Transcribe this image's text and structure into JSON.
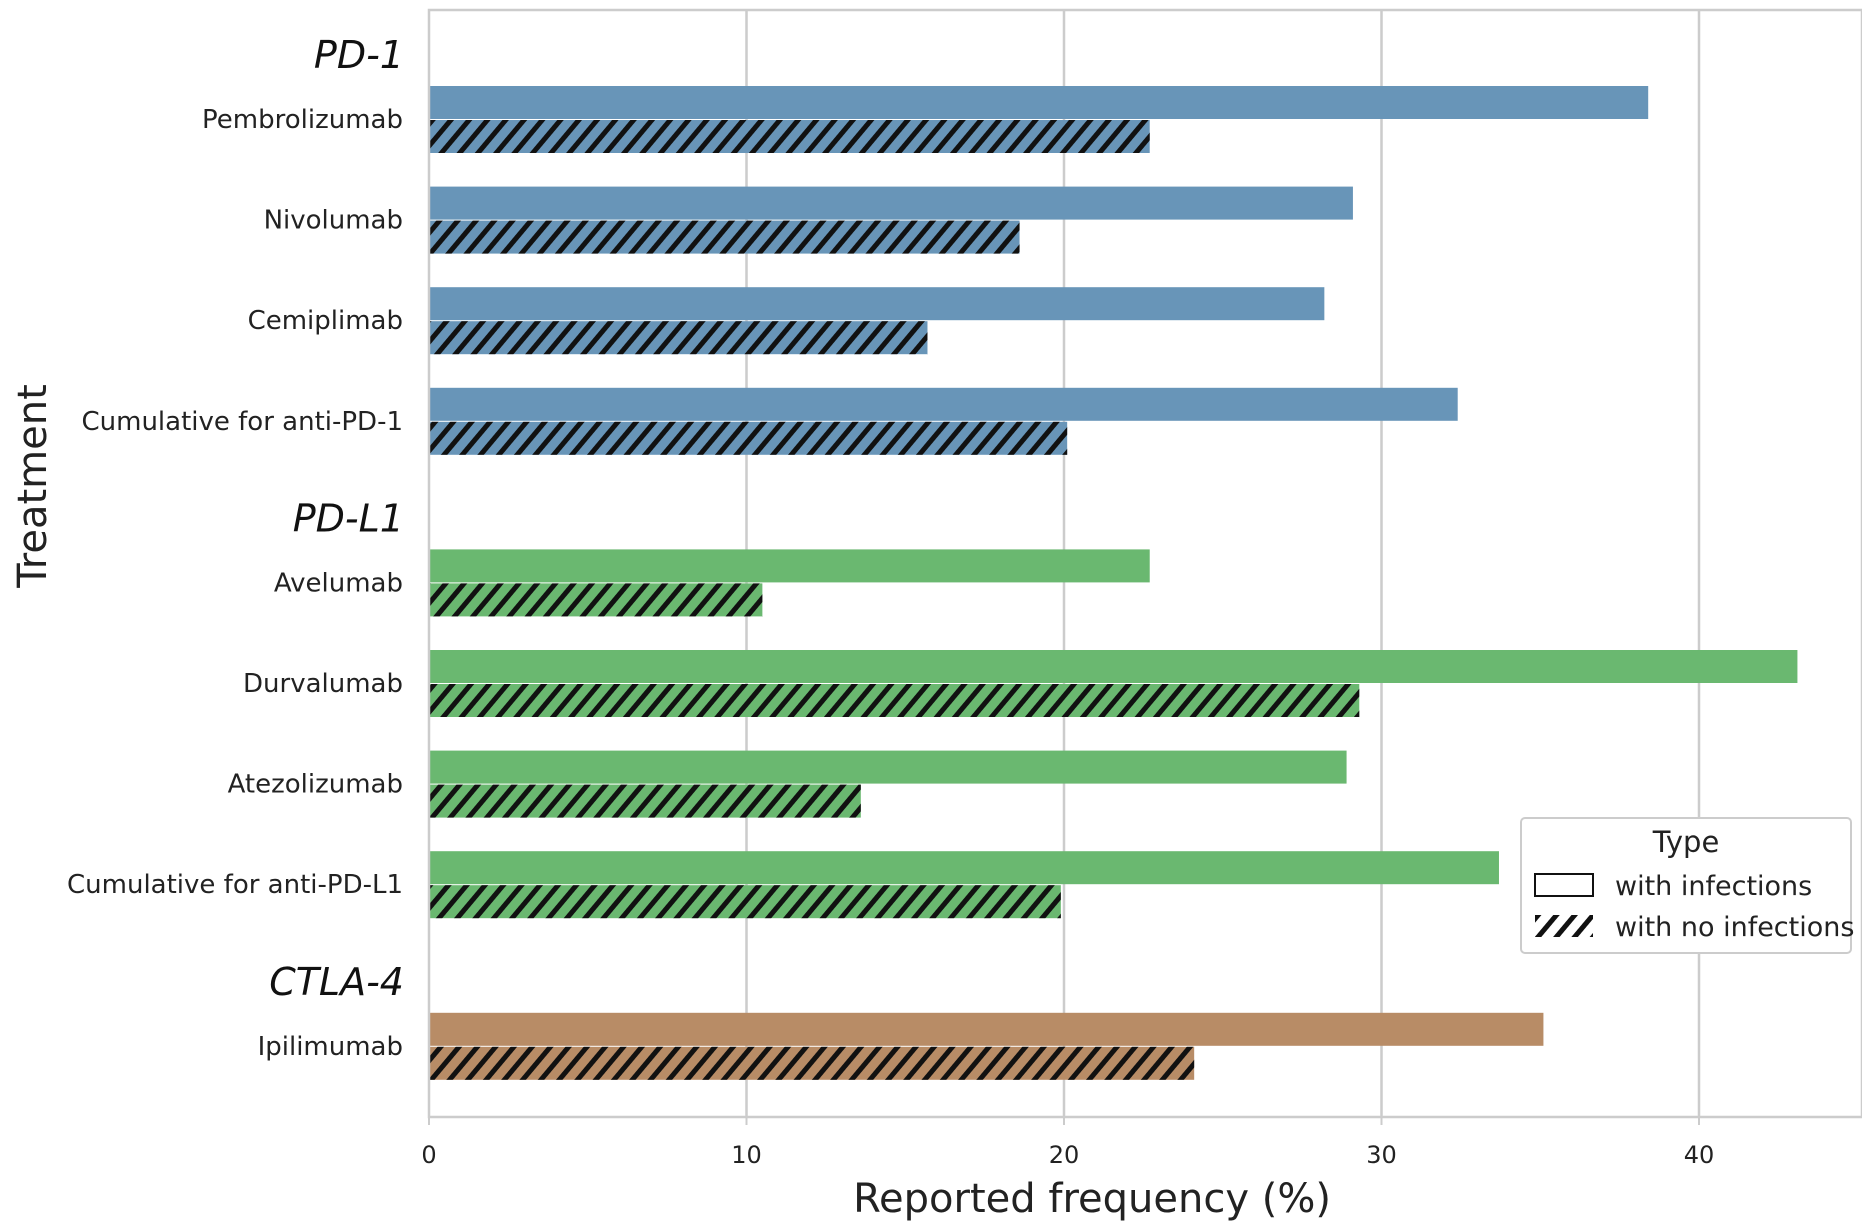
{
  "chart_data": {
    "type": "bar",
    "orientation": "horizontal",
    "xlabel": "Reported frequency (%)",
    "ylabel": "Treatment",
    "xlim": [
      0,
      45
    ],
    "xticks": [
      0,
      10,
      20,
      30,
      40
    ],
    "grid": true,
    "legend": {
      "title": "Type",
      "position": "lower-right",
      "entries": [
        "with infections",
        "with no infections"
      ]
    },
    "colors": {
      "PD-1": "#6895b8",
      "PD-L1": "#6ab870",
      "CTLA-4": "#b88c66"
    },
    "groups": [
      {
        "name": "PD-1",
        "categories": [
          "Pembrolizumab",
          "Nivolumab",
          "Cemiplimab",
          "Cumulative for anti-PD-1"
        ],
        "with_infections": [
          38.4,
          29.1,
          28.2,
          32.4
        ],
        "with_no_infections": [
          22.7,
          18.6,
          15.7,
          20.1
        ]
      },
      {
        "name": "PD-L1",
        "categories": [
          "Avelumab",
          "Durvalumab",
          "Atezolizumab",
          "Cumulative for anti-PD-L1"
        ],
        "with_infections": [
          22.7,
          43.1,
          28.9,
          33.7
        ],
        "with_no_infections": [
          10.5,
          29.3,
          13.6,
          19.9
        ]
      },
      {
        "name": "CTLA-4",
        "categories": [
          "Ipilimumab"
        ],
        "with_infections": [
          35.1
        ],
        "with_no_infections": [
          24.1
        ]
      }
    ]
  }
}
